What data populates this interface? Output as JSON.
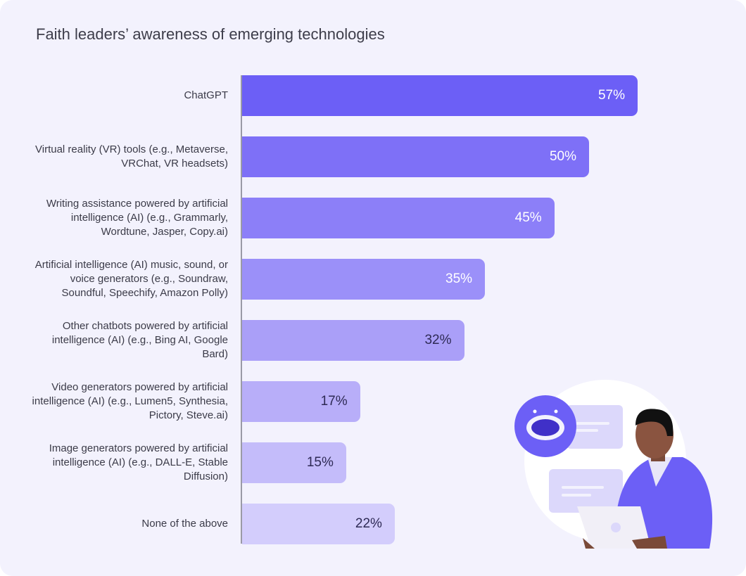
{
  "chart_data": {
    "type": "bar",
    "orientation": "horizontal",
    "title": "Faith leaders’ awareness of emerging technologies",
    "categories": [
      "ChatGPT",
      "Virtual reality (VR) tools (e.g., Metaverse, VRChat, VR headsets)",
      "Writing assistance powered by artificial intelligence (AI) (e.g., Grammarly, Wordtune, Jasper, Copy.ai)",
      "Artificial intelligence (AI) music, sound, or voice generators (e.g., Soundraw, Soundful, Speechify, Amazon Polly)",
      "Other chatbots powered by artificial intelligence (AI) (e.g., Bing AI, Google Bard)",
      "Video generators powered by artificial intelligence (AI) (e.g., Lumen5, Synthesia, Pictory, Steve.ai)",
      "Image generators powered by artificial intelligence (AI) (e.g., DALL-E, Stable Diffusion)",
      "None of the above"
    ],
    "values": [
      57,
      50,
      45,
      35,
      32,
      17,
      15,
      22
    ],
    "data_labels": [
      "57%",
      "50%",
      "45%",
      "35%",
      "32%",
      "17%",
      "15%",
      "22%"
    ],
    "bar_colors": [
      "#6c5ff6",
      "#7e70f7",
      "#8c7ff8",
      "#9b90f9",
      "#aa9ff8",
      "#b8aef9",
      "#c4bcfa",
      "#d3cdfc"
    ],
    "label_colors": [
      "#ffffff",
      "#ffffff",
      "#ffffff",
      "#ffffff",
      "#2e2a55",
      "#2e2a55",
      "#2e2a55",
      "#2e2a55"
    ],
    "xlabel": "",
    "ylabel": "",
    "xlim": [
      0,
      57
    ],
    "grid": false
  },
  "illustration": {
    "icons": [
      "robot-chat-icon",
      "person-with-laptop"
    ],
    "accent": "#6c5ff6"
  }
}
